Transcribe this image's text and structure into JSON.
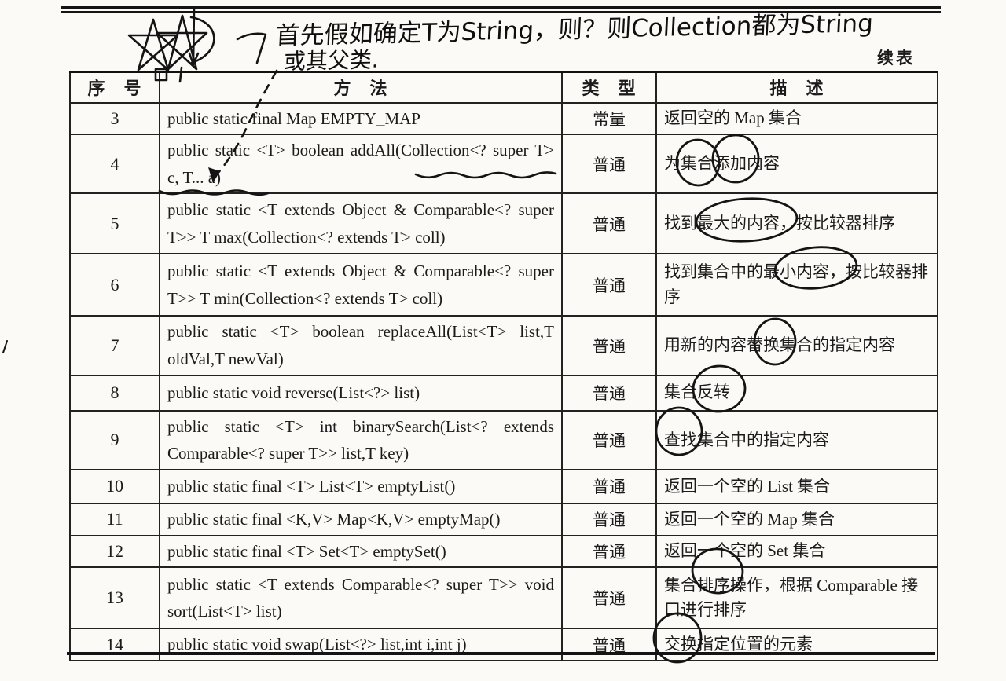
{
  "document": {
    "continued_label": "续表",
    "handwriting": {
      "line1": "首先假如确定T为String，则？则Collection都为String",
      "line2": "或其父类."
    },
    "table": {
      "headers": [
        "序　号",
        "方　法",
        "类　型",
        "描　述"
      ],
      "rows": [
        {
          "no": "3",
          "method": "public static final Map EMPTY_MAP",
          "type": "常量",
          "desc": "返回空的 Map 集合"
        },
        {
          "no": "4",
          "method": "public static <T> boolean addAll(Collection<? super T> c, T... a)",
          "type": "普通",
          "desc": "为集合添加内容"
        },
        {
          "no": "5",
          "method": "public static <T extends Object & Comparable<? super T>> T max(Collection<? extends T> coll)",
          "type": "普通",
          "desc": "找到最大的内容，按比较器排序"
        },
        {
          "no": "6",
          "method": "public static <T extends Object & Comparable<? super T>> T min(Collection<? extends T> coll)",
          "type": "普通",
          "desc": "找到集合中的最小内容，按比较器排序"
        },
        {
          "no": "7",
          "method": "public static <T> boolean replaceAll(List<T> list,T oldVal,T newVal)",
          "type": "普通",
          "desc": "用新的内容替换集合的指定内容"
        },
        {
          "no": "8",
          "method": "public static void reverse(List<?> list)",
          "type": "普通",
          "desc": "集合反转"
        },
        {
          "no": "9",
          "method": "public static <T> int binarySearch(List<? extends Comparable<? super T>> list,T key)",
          "type": "普通",
          "desc": "查找集合中的指定内容"
        },
        {
          "no": "10",
          "method": "public static final <T> List<T> emptyList()",
          "type": "普通",
          "desc": "返回一个空的 List 集合"
        },
        {
          "no": "11",
          "method": "public static final <K,V> Map<K,V> emptyMap()",
          "type": "普通",
          "desc": "返回一个空的 Map 集合"
        },
        {
          "no": "12",
          "method": "public static final <T> Set<T> emptySet()",
          "type": "普通",
          "desc": "返回一个空的 Set 集合"
        },
        {
          "no": "13",
          "method": "public static <T extends Comparable<? super T>> void sort(List<T> list)",
          "type": "普通",
          "desc": "集合排序操作，根据 Comparable 接口进行排序"
        },
        {
          "no": "14",
          "method": "public static void swap(List<?> list,int i,int j)",
          "type": "普通",
          "desc": "交换指定位置的元素"
        }
      ]
    },
    "annotations": {
      "circled_words": [
        "集合",
        "添加",
        "最大的内容",
        "最小内容",
        "替换",
        "反转",
        "查找",
        "排序",
        "交换"
      ],
      "underlined_method_text": [
        "Collection<? super",
        "T> c, T..."
      ]
    }
  }
}
